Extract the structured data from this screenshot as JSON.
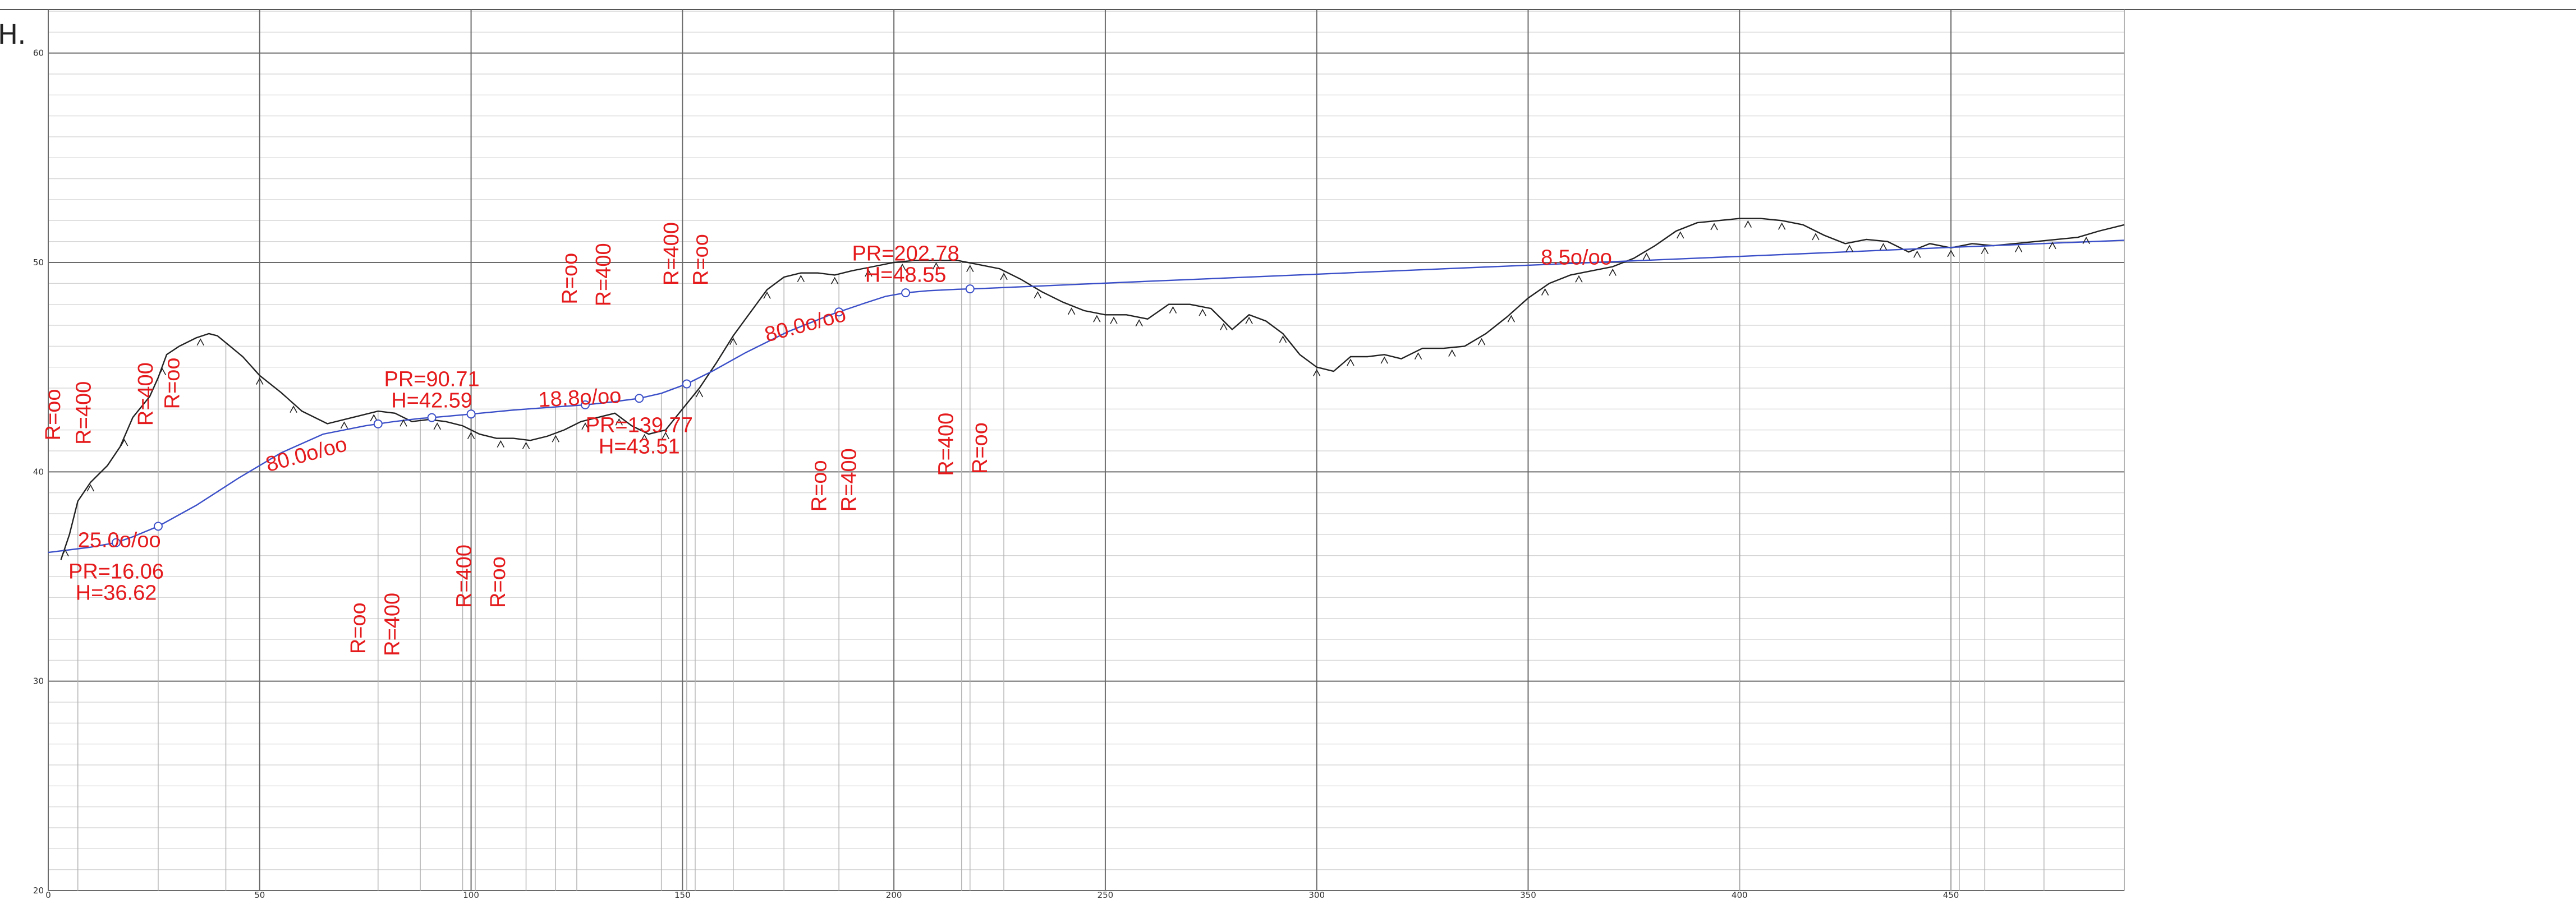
{
  "axis_letter": "H.",
  "chart_data": {
    "type": "line",
    "title": "",
    "xlabel": "",
    "ylabel": "H.",
    "xlim": [
      0,
      491
    ],
    "ylim": [
      20,
      62
    ],
    "x_ticks": [
      0,
      50,
      100,
      150,
      200,
      250,
      300,
      350,
      400,
      450
    ],
    "y_ticks": [
      20,
      30,
      40,
      50,
      60
    ],
    "grid": true,
    "minor_grid_step_y": 1,
    "series": [
      {
        "id": "terrain",
        "color": "#222222",
        "x": [
          3,
          5,
          7,
          10,
          14,
          17,
          20,
          24,
          26,
          28,
          31,
          35,
          38,
          40,
          43,
          46,
          50,
          55,
          60,
          66,
          72,
          78,
          82,
          86,
          90,
          94,
          98,
          102,
          106,
          110,
          114,
          118,
          122,
          126,
          130,
          134,
          138,
          142,
          146,
          150,
          154,
          158,
          162,
          166,
          170,
          174,
          178,
          182,
          186,
          190,
          195,
          200,
          205,
          210,
          215,
          220,
          225,
          230,
          235,
          240,
          245,
          250,
          255,
          260,
          265,
          270,
          275,
          280,
          284,
          288,
          292,
          296,
          300,
          304,
          308,
          312,
          316,
          320,
          325,
          330,
          335,
          340,
          345,
          350,
          355,
          360,
          365,
          370,
          375,
          380,
          385,
          390,
          395,
          400,
          405,
          410,
          415,
          420,
          425,
          430,
          435,
          440,
          445,
          450,
          455,
          460,
          465,
          470,
          475,
          480,
          485,
          491
        ],
        "y": [
          35.8,
          37.0,
          38.6,
          39.5,
          40.3,
          41.2,
          42.6,
          43.6,
          44.5,
          45.6,
          46.0,
          46.4,
          46.6,
          46.5,
          46.0,
          45.5,
          44.6,
          43.8,
          42.9,
          42.3,
          42.6,
          42.9,
          42.8,
          42.4,
          42.5,
          42.4,
          42.2,
          41.8,
          41.6,
          41.6,
          41.5,
          41.7,
          42.0,
          42.4,
          42.6,
          42.8,
          42.2,
          41.8,
          42.0,
          43.0,
          44.0,
          45.2,
          46.5,
          47.6,
          48.7,
          49.3,
          49.5,
          49.5,
          49.4,
          49.6,
          49.8,
          50.0,
          50.1,
          50.1,
          50.1,
          49.9,
          49.7,
          49.2,
          48.6,
          48.1,
          47.7,
          47.5,
          47.5,
          47.3,
          48.0,
          48.0,
          47.8,
          46.8,
          47.5,
          47.2,
          46.6,
          45.6,
          45.0,
          44.8,
          45.5,
          45.5,
          45.6,
          45.4,
          45.9,
          45.9,
          46.0,
          46.6,
          47.4,
          48.3,
          49.0,
          49.4,
          49.6,
          49.8,
          50.2,
          50.8,
          51.5,
          51.9,
          52.0,
          52.1,
          52.1,
          52.0,
          51.8,
          51.3,
          50.9,
          51.1,
          51.0,
          50.5,
          50.9,
          50.7,
          50.9,
          50.8,
          50.9,
          51.0,
          51.1,
          51.2,
          51.5,
          51.8
        ]
      },
      {
        "id": "grade-line",
        "color": "#3b4fc8",
        "x": [
          0,
          10,
          16.06,
          20,
          26,
          35,
          45,
          55,
          65,
          75,
          81,
          85,
          88,
          90.71,
          94,
          100,
          110,
          120,
          127,
          133,
          139.77,
          145,
          151,
          157,
          165,
          175,
          185,
          193,
          198,
          202.78,
          208,
          215,
          220,
          235,
          260,
          300,
          350,
          400,
          450,
          491
        ],
        "y": [
          36.15,
          36.4,
          36.62,
          36.9,
          37.4,
          38.4,
          39.7,
          40.9,
          41.8,
          42.2,
          42.38,
          42.48,
          42.55,
          42.59,
          42.65,
          42.76,
          42.95,
          43.1,
          43.2,
          43.33,
          43.51,
          43.75,
          44.2,
          44.8,
          45.7,
          46.7,
          47.5,
          48.05,
          48.38,
          48.55,
          48.65,
          48.72,
          48.75,
          48.88,
          49.1,
          49.44,
          49.87,
          50.29,
          50.72,
          51.06
        ]
      }
    ],
    "vertical_markers": [
      7,
      26,
      42,
      78,
      88,
      98,
      101,
      113,
      120,
      125,
      145,
      151,
      153,
      162,
      174,
      187,
      216,
      218,
      226,
      400,
      450,
      452,
      458,
      472
    ],
    "point_markers": {
      "terrain_arrows": [
        4,
        10,
        18,
        27,
        36,
        50,
        58,
        70,
        77,
        84,
        92,
        100,
        107,
        113,
        120,
        127,
        135,
        141,
        146,
        154,
        162,
        170,
        178,
        186,
        194,
        202,
        210,
        218,
        226,
        234,
        242,
        248,
        252,
        258,
        266,
        273,
        278,
        284,
        292,
        300,
        308,
        316,
        324,
        332,
        339,
        346,
        354,
        362,
        370,
        378,
        386,
        394,
        402,
        410,
        418,
        426,
        434,
        442,
        450,
        458,
        466,
        474,
        482
      ],
      "grade_circles": [
        16.06,
        26,
        78,
        90.71,
        100,
        127,
        139.77,
        151,
        187,
        202.78,
        218
      ]
    },
    "annotations": {
      "grades": [
        {
          "text": "25.0o/oo",
          "x": 7,
          "y": 36.4,
          "angle": 0
        },
        {
          "text": "80.0o/oo",
          "x": 52,
          "y": 40.0,
          "angle": -15
        },
        {
          "text": "18.8o/oo",
          "x": 116,
          "y": 43.1,
          "angle": -3
        },
        {
          "text": "80.0o/oo",
          "x": 170,
          "y": 46.2,
          "angle": -15
        },
        {
          "text": "8.5o/oo",
          "x": 353,
          "y": 49.9,
          "angle": 0
        }
      ],
      "vertices": [
        {
          "pr": "PR=16.06",
          "h": "H=36.62",
          "x": 16.06,
          "y": 34.9
        },
        {
          "pr": "PR=90.71",
          "h": "H=42.59",
          "x": 90.71,
          "y": 44.1
        },
        {
          "pr": "PR=139.77",
          "h": "H=43.51",
          "x": 139.77,
          "y": 41.9
        },
        {
          "pr": "PR=202.78",
          "h": "H=48.55",
          "x": 202.78,
          "y": 50.1
        }
      ],
      "radii": [
        {
          "text": "R=oo",
          "x": 2.8,
          "y": 41.5
        },
        {
          "text": "R=400",
          "x": 10,
          "y": 41.3
        },
        {
          "text": "R=400",
          "x": 24.7,
          "y": 42.2
        },
        {
          "text": "R=oo",
          "x": 31,
          "y": 43.0
        },
        {
          "text": "R=oo",
          "x": 75,
          "y": 31.3
        },
        {
          "text": "R=400",
          "x": 83,
          "y": 31.2
        },
        {
          "text": "R=400",
          "x": 100,
          "y": 33.5
        },
        {
          "text": "R=oo",
          "x": 108,
          "y": 33.5
        },
        {
          "text": "R=oo",
          "x": 125,
          "y": 48.0
        },
        {
          "text": "R=400",
          "x": 133,
          "y": 47.9
        },
        {
          "text": "R=400",
          "x": 149,
          "y": 48.9
        },
        {
          "text": "R=oo",
          "x": 156,
          "y": 48.9
        },
        {
          "text": "R=oo",
          "x": 184,
          "y": 38.1
        },
        {
          "text": "R=400",
          "x": 191,
          "y": 38.1
        },
        {
          "text": "R=400",
          "x": 214,
          "y": 39.8
        },
        {
          "text": "R=oo",
          "x": 222,
          "y": 39.9
        }
      ]
    }
  }
}
